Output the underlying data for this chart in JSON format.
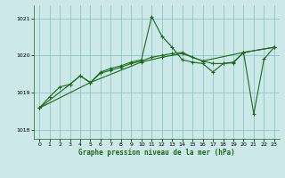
{
  "title": "Graphe pression niveau de la mer (hPa)",
  "bg_color": "#cce8e8",
  "line_color": "#1a6b1a",
  "grid_color": "#7fbfbf",
  "xlim": [
    -0.5,
    23.5
  ],
  "ylim": [
    1017.75,
    1021.35
  ],
  "yticks": [
    1018,
    1019,
    1020,
    1021
  ],
  "xticks": [
    0,
    1,
    2,
    3,
    4,
    5,
    6,
    7,
    8,
    9,
    10,
    11,
    12,
    13,
    14,
    15,
    16,
    17,
    18,
    19,
    20,
    21,
    22,
    23
  ],
  "series1": [
    [
      0,
      1018.58
    ],
    [
      1,
      1018.88
    ],
    [
      2,
      1019.15
    ],
    [
      3,
      1019.22
    ],
    [
      4,
      1019.45
    ],
    [
      5,
      1019.27
    ],
    [
      6,
      1019.55
    ],
    [
      7,
      1019.65
    ],
    [
      8,
      1019.72
    ],
    [
      9,
      1019.82
    ],
    [
      10,
      1019.88
    ],
    [
      11,
      1021.05
    ],
    [
      12,
      1020.52
    ],
    [
      13,
      1020.22
    ],
    [
      14,
      1019.88
    ],
    [
      15,
      1019.82
    ],
    [
      16,
      1019.78
    ],
    [
      17,
      1019.55
    ],
    [
      18,
      1019.78
    ],
    [
      19,
      1019.8
    ],
    [
      20,
      1020.08
    ],
    [
      21,
      1018.42
    ],
    [
      22,
      1019.9
    ],
    [
      23,
      1020.22
    ]
  ],
  "series2": [
    [
      0,
      1018.58
    ],
    [
      3,
      1019.22
    ],
    [
      4,
      1019.45
    ],
    [
      5,
      1019.27
    ],
    [
      6,
      1019.52
    ],
    [
      7,
      1019.6
    ],
    [
      8,
      1019.68
    ],
    [
      9,
      1019.78
    ],
    [
      10,
      1019.85
    ],
    [
      11,
      1019.95
    ],
    [
      12,
      1020.0
    ],
    [
      13,
      1020.05
    ],
    [
      14,
      1020.08
    ],
    [
      15,
      1019.95
    ],
    [
      16,
      1019.85
    ],
    [
      17,
      1019.78
    ],
    [
      18,
      1019.78
    ],
    [
      19,
      1019.82
    ],
    [
      20,
      1020.08
    ],
    [
      23,
      1020.22
    ]
  ],
  "series3": [
    [
      0,
      1018.58
    ],
    [
      5,
      1019.27
    ],
    [
      10,
      1019.82
    ],
    [
      12,
      1019.95
    ],
    [
      14,
      1020.05
    ],
    [
      16,
      1019.85
    ],
    [
      20,
      1020.08
    ],
    [
      23,
      1020.22
    ]
  ],
  "linewidth": 0.8,
  "markersize": 3.5
}
